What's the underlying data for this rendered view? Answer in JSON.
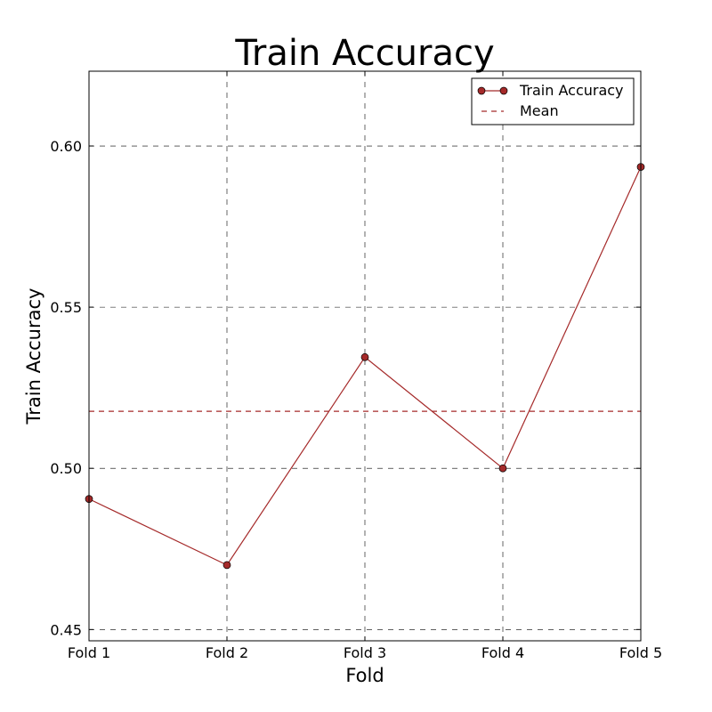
{
  "chart_data": {
    "type": "line",
    "title": "Train Accuracy",
    "xlabel": "Fold",
    "ylabel": "Train Accuracy",
    "categories": [
      "Fold 1",
      "Fold 2",
      "Fold 3",
      "Fold 4",
      "Fold 5"
    ],
    "series": [
      {
        "name": "Train Accuracy",
        "values": [
          0.4905,
          0.47,
          0.5345,
          0.5,
          0.5935
        ],
        "color": "#a52a2a"
      }
    ],
    "mean": {
      "name": "Mean",
      "value": 0.5177,
      "color": "#a52a2a"
    },
    "ylim": [
      0.4465,
      0.6232
    ],
    "yticks": [
      0.45,
      0.5,
      0.55,
      0.6
    ],
    "ytick_labels": [
      "0.45",
      "0.50",
      "0.55",
      "0.60"
    ],
    "grid": true,
    "legend_position": "top-right"
  }
}
